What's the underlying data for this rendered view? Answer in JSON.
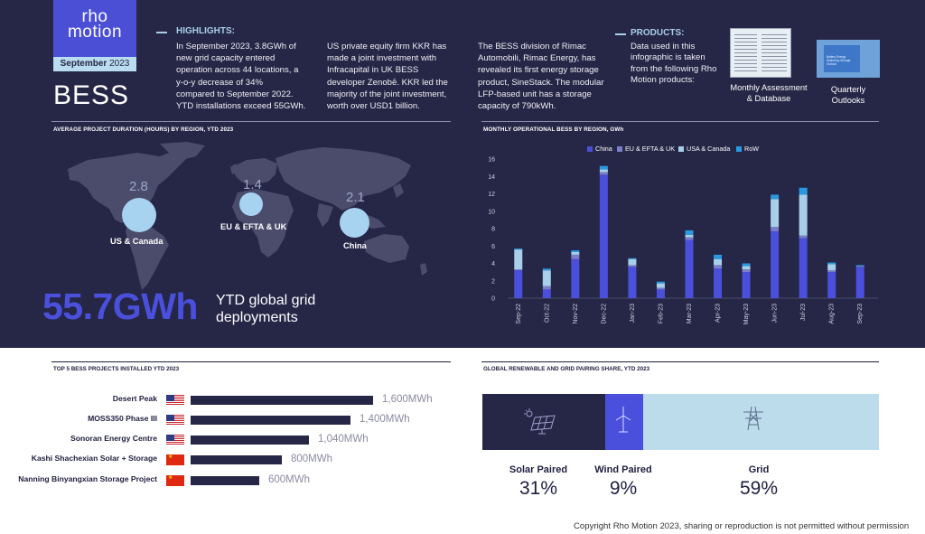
{
  "brand": {
    "logo_line1": "rho",
    "logo_line2": "motion",
    "date_month": "September",
    "date_year": "2023",
    "title": "BESS"
  },
  "highlights": {
    "heading": "HIGHLIGHTS:",
    "col1": [
      "In September 2023, 3.8GWh of",
      "new grid capacity entered",
      "operation across 44 locations, a",
      "y-o-y decrease of 34%",
      "compared to September 2022.",
      "YTD installations exceed 55GWh."
    ],
    "col2": [
      "US private equity firm KKR has",
      "made a joint investment with",
      "Infracapital in UK BESS",
      "developer Zenobē. KKR led the",
      "majority of the joint investment,",
      "worth over USD1 billion."
    ],
    "col3": [
      "The BESS division of Rimac",
      "Automobili, Rimac Energy, has",
      "revealed its first energy storage",
      "product, SineStack. The modular",
      "LFP-based unit has a storage",
      "capacity of 790kWh."
    ]
  },
  "products": {
    "heading": "PRODUCTS:",
    "text": [
      "Data used in this",
      "infographic is taken",
      "from the following Rho",
      "Motion products:"
    ],
    "item1": [
      "Monthly Assessment",
      "& Database"
    ],
    "item2": [
      "Quarterly",
      "Outlooks"
    ],
    "thumb2_caption": [
      "Battery Energy",
      "Stationary Storage",
      "Outlook"
    ]
  },
  "map_section": {
    "title": "AVERAGE PROJECT DURATION (HOURS) BY REGION, YTD 2023",
    "bubbles": [
      {
        "value": "2.8",
        "label": "US & Canada"
      },
      {
        "value": "1.4",
        "label": "EU & EFTA & UK"
      },
      {
        "value": "2.1",
        "label": "China"
      }
    ],
    "ytd_value": "55.7GWh",
    "ytd_text_line1": "YTD global grid",
    "ytd_text_line2": "deployments"
  },
  "colors": {
    "china": "#4a50dc",
    "eu": "#7b7fc9",
    "usa": "#a8cfe9",
    "row": "#2a9ae0",
    "navy": "#262647"
  },
  "chart_data": {
    "type": "bar",
    "stacked": true,
    "title": "MONTHLY OPERATIONAL BESS BY REGION, GWh",
    "categories": [
      "Sep-22",
      "Oct-22",
      "Nov-22",
      "Dec-22",
      "Jan-23",
      "Feb-23",
      "Mar-23",
      "Apr-23",
      "May-23",
      "Jun-23",
      "Jul-23",
      "Aug-23",
      "Sep-23"
    ],
    "series": [
      {
        "name": "China",
        "values": [
          3.2,
          1.0,
          4.5,
          14.2,
          3.6,
          1.0,
          6.7,
          3.4,
          3.0,
          7.7,
          6.9,
          3.0,
          3.6
        ]
      },
      {
        "name": "EU & EFTA & UK",
        "values": [
          0.1,
          0.4,
          0.5,
          0.3,
          0.2,
          0.2,
          0.3,
          0.4,
          0.3,
          0.5,
          0.3,
          0.2,
          0.1
        ]
      },
      {
        "name": "USA & Canada",
        "values": [
          2.3,
          1.8,
          0.3,
          0.3,
          0.7,
          0.5,
          0.3,
          0.7,
          0.4,
          3.2,
          4.7,
          0.7,
          0.0
        ]
      },
      {
        "name": "RoW",
        "values": [
          0.1,
          0.2,
          0.2,
          0.4,
          0.1,
          0.2,
          0.5,
          0.5,
          0.3,
          0.5,
          0.8,
          0.2,
          0.1
        ]
      }
    ],
    "yticks": [
      "0",
      "2",
      "4",
      "6",
      "8",
      "10",
      "12",
      "14",
      "16"
    ],
    "ylim": [
      0,
      16
    ],
    "legend_position": "top"
  },
  "top5": {
    "title": "TOP 5 BESS PROJECTS INSTALLED YTD 2023",
    "items": [
      {
        "name": "Desert Peak",
        "country": "US",
        "value": 1600,
        "label": "1,600MWh"
      },
      {
        "name": "MOSS350 Phase III",
        "country": "US",
        "value": 1400,
        "label": "1,400MWh"
      },
      {
        "name": "Sonoran Energy Centre",
        "country": "US",
        "value": 1040,
        "label": "1,040MWh"
      },
      {
        "name": "Kashi Shachexian Solar + Storage",
        "country": "CN",
        "value": 800,
        "label": "800MWh"
      },
      {
        "name": "Nanning Binyangxian Storage Project",
        "country": "CN",
        "value": 600,
        "label": "600MWh"
      }
    ]
  },
  "pairing": {
    "title": "GLOBAL RENEWABLE AND GRID PAIRING SHARE, YTD 2023",
    "items": [
      {
        "label": "Solar Paired",
        "value": "31%",
        "share": 31
      },
      {
        "label": "Wind Paired",
        "value": "9%",
        "share": 9
      },
      {
        "label": "Grid",
        "value": "59%",
        "share": 59
      }
    ]
  },
  "copyright": "Copyright Rho Motion 2023, sharing or reproduction is not permitted without permission"
}
